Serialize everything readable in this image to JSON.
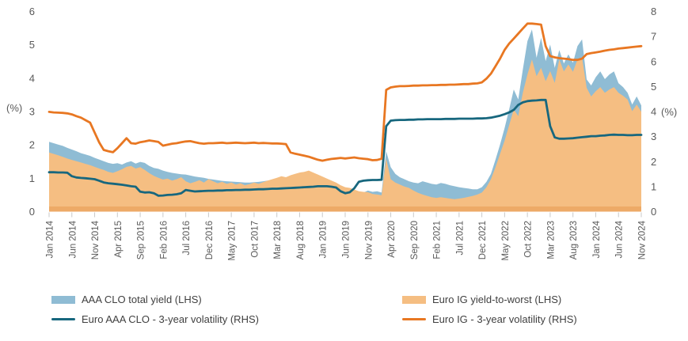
{
  "chart_data": {
    "type": "area",
    "title": "",
    "x_start": "Jan 2014",
    "x_end": "Nov 2024",
    "frequency": "monthly",
    "grid": false,
    "legend_position": "bottom",
    "x_tick_labels": [
      "Jan 2014",
      "Jun 2014",
      "Nov 2014",
      "Apr 2015",
      "Sep 2015",
      "Feb 2016",
      "Jul 2016",
      "Dec 2016",
      "May 2017",
      "Oct 2017",
      "Mar 2018",
      "Aug 2018",
      "Jan 2019",
      "Jun 2019",
      "Nov 2019",
      "Apr 2020",
      "Sep 2020",
      "Feb 2021",
      "Jul 2021",
      "Dec 2021",
      "May 2022",
      "Oct 2022",
      "Mar 2023",
      "Aug 2023",
      "Jan 2024",
      "Jun 2024",
      "Nov 2024"
    ],
    "x_tick_step_months": 5,
    "axes": {
      "left": {
        "label": "(%)",
        "min": 0,
        "max": 6,
        "ticks": [
          0,
          1,
          2,
          3,
          4,
          5,
          6
        ]
      },
      "right": {
        "label": "(%)",
        "min": 0,
        "max": 8,
        "ticks": [
          0,
          1,
          2,
          3,
          4,
          5,
          6,
          7,
          8
        ]
      }
    },
    "series": [
      {
        "name": "AAA CLO total yield (LHS)",
        "type": "area",
        "axis": "left",
        "color": "#8FBCD4",
        "values": [
          2.08,
          2.04,
          2.0,
          1.96,
          1.9,
          1.85,
          1.8,
          1.74,
          1.7,
          1.66,
          1.6,
          1.55,
          1.5,
          1.45,
          1.42,
          1.44,
          1.4,
          1.46,
          1.5,
          1.43,
          1.48,
          1.45,
          1.36,
          1.3,
          1.27,
          1.22,
          1.18,
          1.15,
          1.13,
          1.11,
          1.1,
          1.07,
          1.04,
          1.02,
          1.0,
          0.97,
          0.95,
          0.93,
          0.91,
          0.9,
          0.89,
          0.88,
          0.87,
          0.86,
          0.86,
          0.87,
          0.88,
          0.9,
          0.92,
          0.94,
          0.97,
          1.0,
          1.02,
          1.04,
          1.07,
          1.1,
          1.15,
          1.18,
          1.1,
          1.06,
          0.92,
          0.96,
          0.9,
          0.84,
          0.74,
          0.62,
          0.58,
          0.52,
          0.48,
          0.56,
          0.62,
          0.58,
          0.6,
          0.56,
          1.8,
          1.32,
          1.12,
          1.02,
          0.96,
          0.9,
          0.86,
          0.84,
          0.9,
          0.86,
          0.82,
          0.8,
          0.85,
          0.82,
          0.78,
          0.75,
          0.72,
          0.7,
          0.68,
          0.66,
          0.66,
          0.72,
          0.88,
          1.12,
          1.55,
          2.0,
          2.5,
          3.05,
          3.65,
          3.35,
          4.25,
          5.1,
          5.45,
          4.6,
          5.2,
          4.5,
          5.0,
          4.3,
          4.83,
          4.43,
          4.7,
          4.45,
          4.95,
          5.15,
          3.95,
          3.77,
          4.02,
          4.19,
          3.96,
          4.1,
          4.19,
          3.84,
          3.72,
          3.55,
          3.2,
          3.44,
          3.17
        ]
      },
      {
        "name": "Euro IG yield-to-worst (LHS)",
        "type": "area",
        "axis": "left",
        "color": "#F5BE82",
        "values": [
          1.76,
          1.72,
          1.68,
          1.63,
          1.58,
          1.54,
          1.5,
          1.46,
          1.42,
          1.38,
          1.33,
          1.28,
          1.24,
          1.18,
          1.15,
          1.2,
          1.26,
          1.33,
          1.36,
          1.28,
          1.32,
          1.24,
          1.14,
          1.06,
          1.0,
          0.95,
          0.98,
          0.92,
          0.96,
          1.02,
          0.9,
          0.84,
          0.88,
          0.93,
          0.86,
          0.96,
          0.9,
          0.84,
          0.88,
          0.82,
          0.86,
          0.8,
          0.84,
          0.78,
          0.81,
          0.86,
          0.82,
          0.87,
          0.92,
          0.96,
          1.0,
          1.05,
          1.02,
          1.08,
          1.12,
          1.16,
          1.18,
          1.22,
          1.16,
          1.1,
          1.04,
          0.98,
          0.92,
          0.86,
          0.78,
          0.72,
          0.7,
          0.65,
          0.6,
          0.58,
          0.57,
          0.52,
          0.5,
          0.48,
          1.58,
          0.96,
          0.86,
          0.8,
          0.74,
          0.7,
          0.62,
          0.55,
          0.5,
          0.46,
          0.42,
          0.4,
          0.42,
          0.4,
          0.38,
          0.36,
          0.38,
          0.4,
          0.43,
          0.46,
          0.5,
          0.56,
          0.72,
          0.96,
          1.32,
          1.72,
          2.12,
          2.58,
          3.05,
          2.85,
          3.55,
          4.1,
          4.55,
          4.05,
          4.3,
          3.9,
          4.2,
          3.85,
          4.55,
          4.19,
          4.4,
          4.18,
          4.55,
          4.6,
          3.7,
          3.44,
          3.6,
          3.72,
          3.55,
          3.65,
          3.72,
          3.55,
          3.46,
          3.35,
          3.0,
          3.2,
          2.98
        ]
      },
      {
        "name": "Euro AAA CLO - 3-year volatility (RHS)",
        "type": "line",
        "axis": "right",
        "color": "#17677E",
        "values": [
          1.56,
          1.56,
          1.55,
          1.55,
          1.54,
          1.4,
          1.35,
          1.33,
          1.32,
          1.3,
          1.28,
          1.22,
          1.15,
          1.12,
          1.1,
          1.08,
          1.06,
          1.03,
          1.0,
          0.98,
          0.78,
          0.75,
          0.76,
          0.72,
          0.62,
          0.63,
          0.65,
          0.66,
          0.68,
          0.72,
          0.85,
          0.82,
          0.79,
          0.8,
          0.81,
          0.82,
          0.82,
          0.83,
          0.83,
          0.84,
          0.84,
          0.85,
          0.85,
          0.86,
          0.86,
          0.87,
          0.88,
          0.88,
          0.89,
          0.9,
          0.9,
          0.91,
          0.92,
          0.93,
          0.94,
          0.95,
          0.96,
          0.97,
          0.98,
          1.0,
          1.0,
          1.0,
          0.98,
          0.95,
          0.8,
          0.72,
          0.76,
          0.92,
          1.18,
          1.22,
          1.24,
          1.25,
          1.25,
          1.26,
          3.4,
          3.62,
          3.64,
          3.65,
          3.65,
          3.66,
          3.66,
          3.67,
          3.67,
          3.68,
          3.68,
          3.68,
          3.68,
          3.69,
          3.69,
          3.69,
          3.7,
          3.7,
          3.7,
          3.7,
          3.71,
          3.71,
          3.72,
          3.74,
          3.78,
          3.82,
          3.88,
          3.95,
          4.05,
          4.25,
          4.35,
          4.4,
          4.42,
          4.43,
          4.45,
          4.45,
          3.4,
          2.95,
          2.9,
          2.9,
          2.91,
          2.92,
          2.94,
          2.96,
          2.98,
          3.0,
          3.0,
          3.02,
          3.03,
          3.05,
          3.06,
          3.05,
          3.05,
          3.04,
          3.04,
          3.05,
          3.05
        ]
      },
      {
        "name": "Euro IG - 3-year volatility (RHS)",
        "type": "line",
        "axis": "right",
        "color": "#E87722",
        "values": [
          3.97,
          3.95,
          3.94,
          3.93,
          3.91,
          3.87,
          3.8,
          3.74,
          3.64,
          3.54,
          3.15,
          2.75,
          2.45,
          2.4,
          2.36,
          2.52,
          2.72,
          2.92,
          2.72,
          2.7,
          2.76,
          2.79,
          2.83,
          2.8,
          2.77,
          2.62,
          2.66,
          2.7,
          2.72,
          2.76,
          2.79,
          2.8,
          2.76,
          2.72,
          2.7,
          2.72,
          2.72,
          2.73,
          2.74,
          2.72,
          2.73,
          2.74,
          2.73,
          2.72,
          2.73,
          2.74,
          2.72,
          2.73,
          2.72,
          2.71,
          2.71,
          2.7,
          2.68,
          2.35,
          2.3,
          2.26,
          2.22,
          2.18,
          2.12,
          2.06,
          2.02,
          2.06,
          2.09,
          2.11,
          2.13,
          2.11,
          2.13,
          2.15,
          2.12,
          2.1,
          2.08,
          2.04,
          2.05,
          2.1,
          4.85,
          4.95,
          4.98,
          5.0,
          5.0,
          5.01,
          5.02,
          5.02,
          5.03,
          5.03,
          5.04,
          5.04,
          5.05,
          5.05,
          5.06,
          5.06,
          5.07,
          5.08,
          5.08,
          5.1,
          5.11,
          5.15,
          5.3,
          5.5,
          5.8,
          6.1,
          6.45,
          6.7,
          6.9,
          7.1,
          7.3,
          7.5,
          7.5,
          7.48,
          7.46,
          6.6,
          6.2,
          6.15,
          6.12,
          6.1,
          6.08,
          6.05,
          6.05,
          6.1,
          6.28,
          6.32,
          6.35,
          6.38,
          6.42,
          6.45,
          6.47,
          6.5,
          6.52,
          6.54,
          6.56,
          6.58,
          6.6
        ]
      }
    ]
  },
  "legend": {
    "items": [
      {
        "label": "AAA CLO total yield (LHS)",
        "type": "area",
        "color": "#8FBCD4"
      },
      {
        "label": "Euro IG yield-to-worst (LHS)",
        "type": "area",
        "color": "#F5BE82"
      },
      {
        "label": "Euro AAA CLO - 3-year volatility (RHS)",
        "type": "line",
        "color": "#17677E"
      },
      {
        "label": "Euro IG - 3-year volatility (RHS)",
        "type": "line",
        "color": "#E87722"
      }
    ]
  },
  "colors": {
    "baseline_strip": "#EDAA67",
    "axis_text": "#595959",
    "legend_text": "#404040",
    "tick": "#C9C9C9",
    "background": "#FFFFFF"
  }
}
